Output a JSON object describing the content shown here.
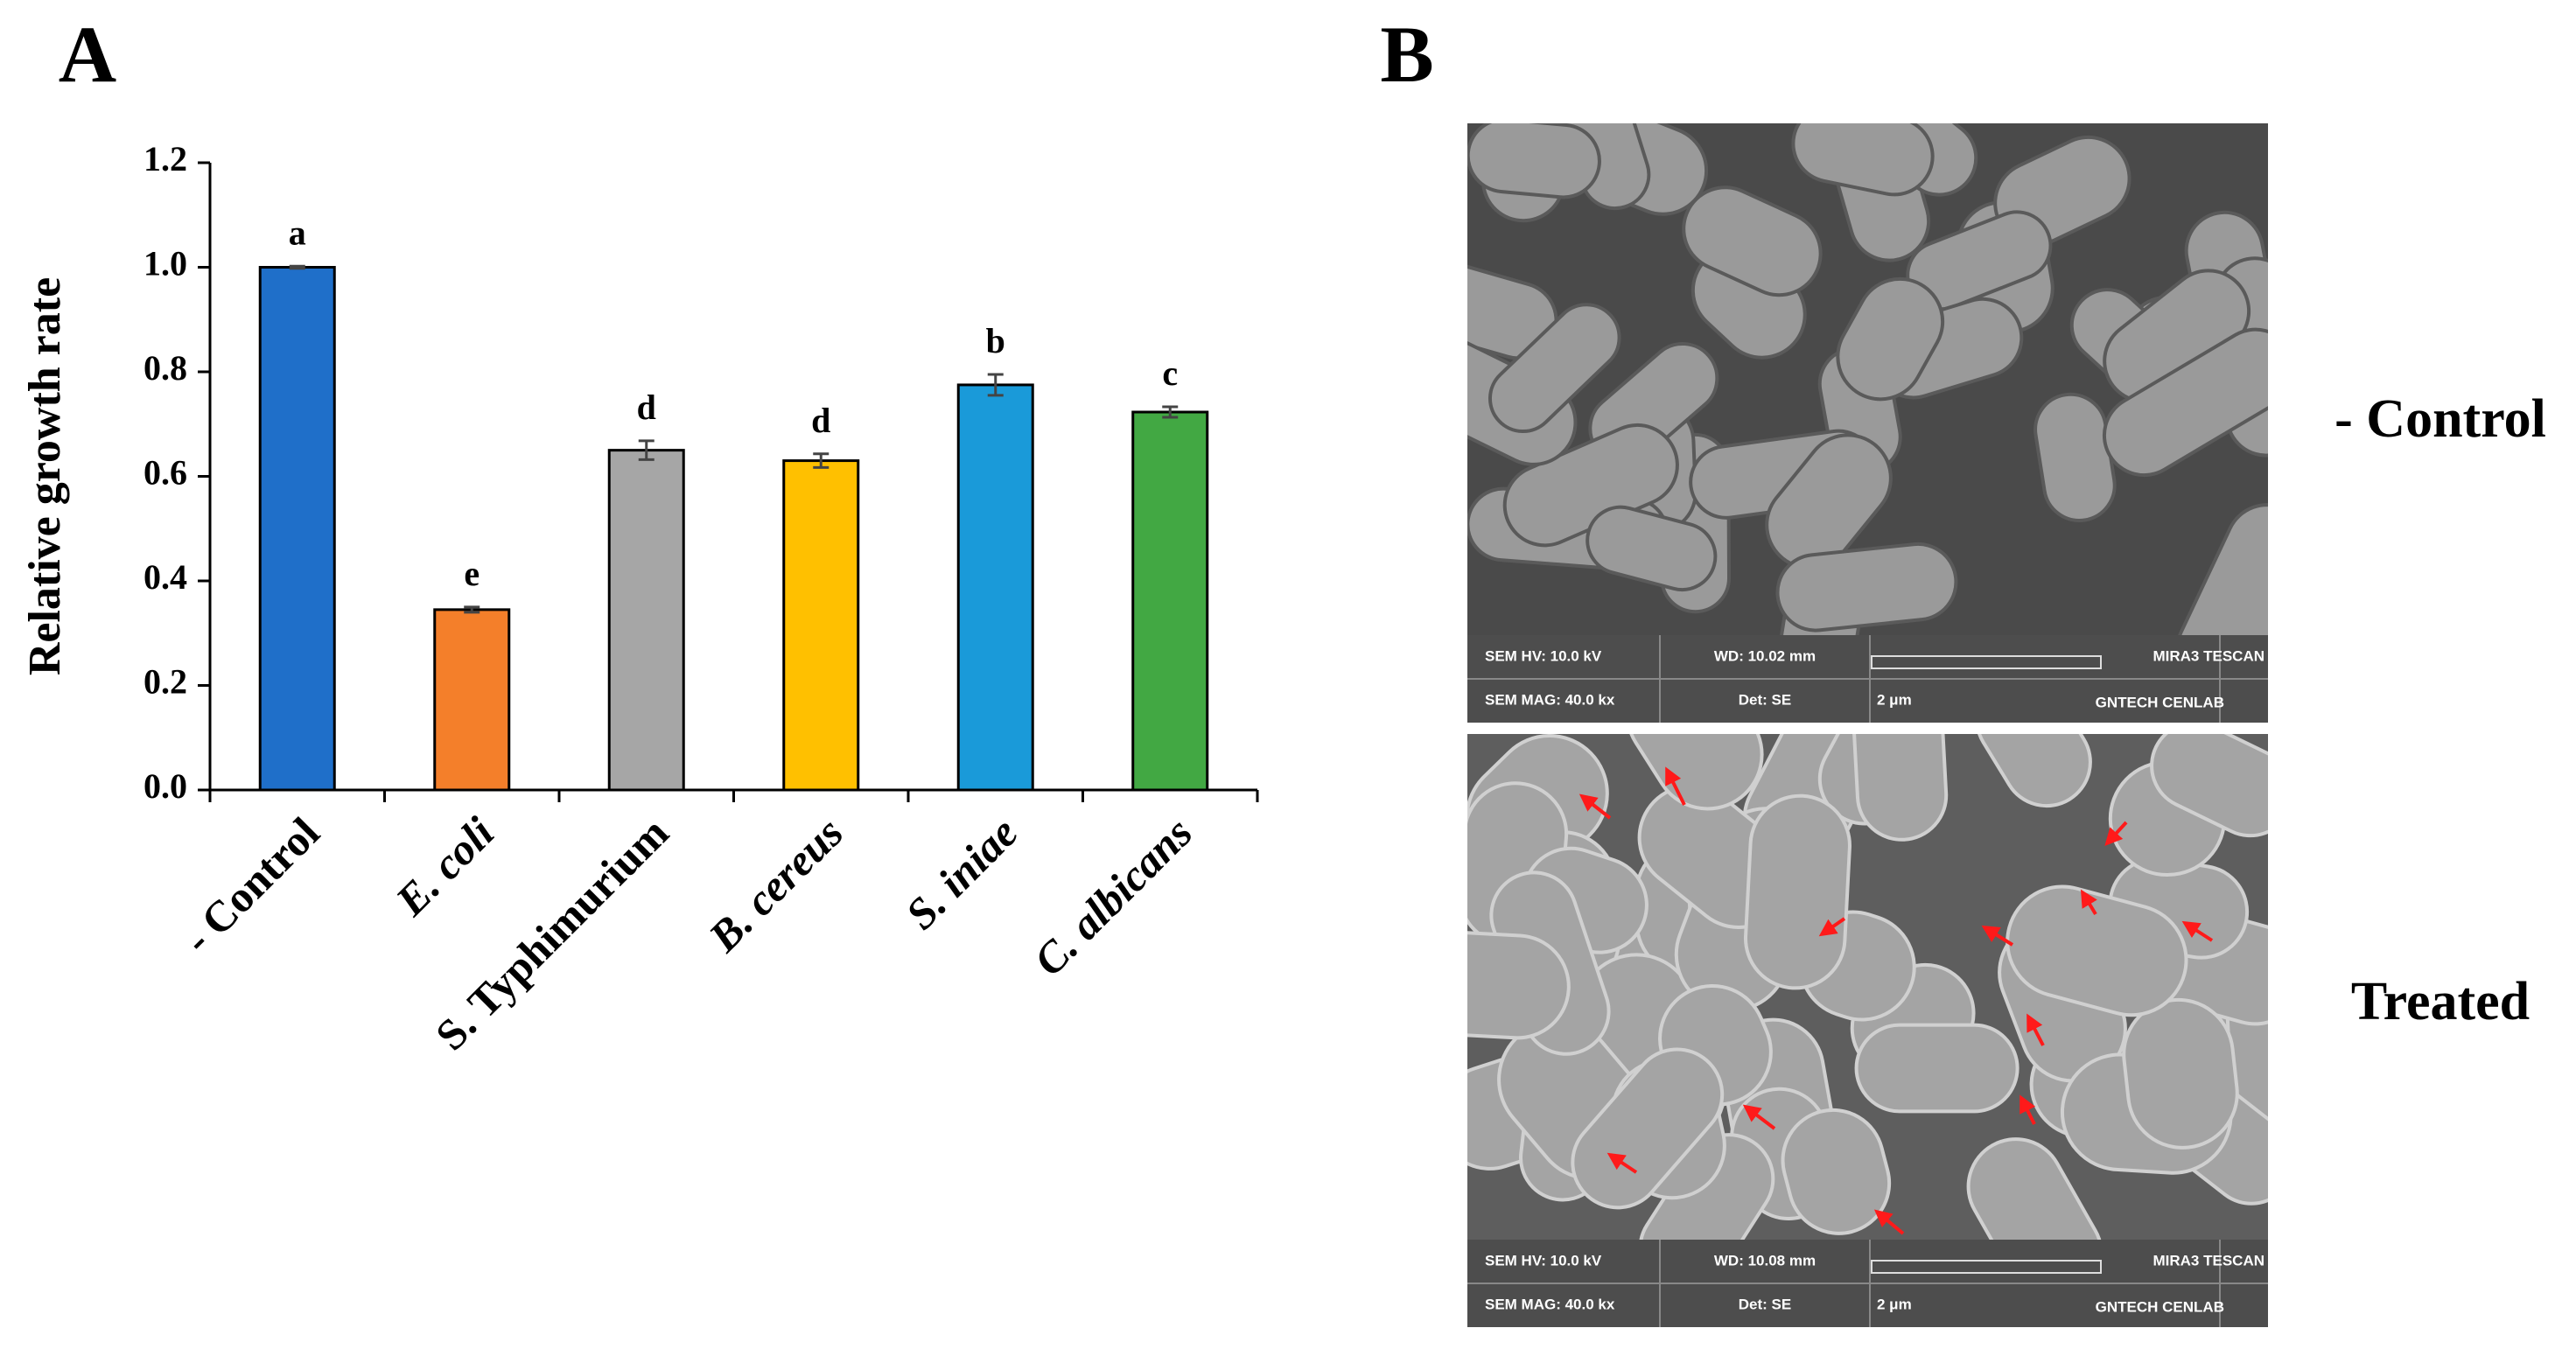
{
  "panel_a_label": "A",
  "panel_b_label": "B",
  "chart_data": {
    "type": "bar",
    "y_label": "Relative growth rate",
    "categories": [
      "- Control",
      "E. coli",
      "S. Typhimurium",
      "B. cereus",
      "S. iniae",
      "C. albicans"
    ],
    "category_italic": [
      false,
      true,
      false,
      true,
      true,
      true
    ],
    "values": [
      1.0,
      0.345,
      0.65,
      0.63,
      0.775,
      0.723
    ],
    "errors": [
      0.002,
      0.005,
      0.018,
      0.013,
      0.02,
      0.01
    ],
    "annotations": [
      "a",
      "e",
      "d",
      "d",
      "b",
      "c"
    ],
    "colors": [
      "#1f6fc9",
      "#f47f2a",
      "#a6a6a6",
      "#ffc000",
      "#1a9ad9",
      "#42a843"
    ],
    "ylim": [
      0,
      1.2
    ],
    "yticks": [
      {
        "value": 0,
        "label": "0.0"
      },
      0.2,
      0.4,
      0.6,
      0.8,
      {
        "value": 1,
        "label": "1.0"
      },
      1.2
    ]
  },
  "sem_images": [
    {
      "label": "- Control",
      "hv": "SEM HV: 10.0 kV",
      "wd": "WD: 10.02 mm",
      "brand": "MIRA3 TESCAN",
      "mag": "SEM MAG: 40.0 kx",
      "det": "Det: SE",
      "scale": "2 μm",
      "lab": "GNTECH CENLAB"
    },
    {
      "label": "Treated",
      "hv": "SEM HV: 10.0 kV",
      "wd": "WD: 10.08 mm",
      "brand": "MIRA3 TESCAN",
      "mag": "SEM MAG: 40.0 kx",
      "det": "Det: SE",
      "scale": "2 μm",
      "lab": "GNTECH CENLAB"
    }
  ]
}
